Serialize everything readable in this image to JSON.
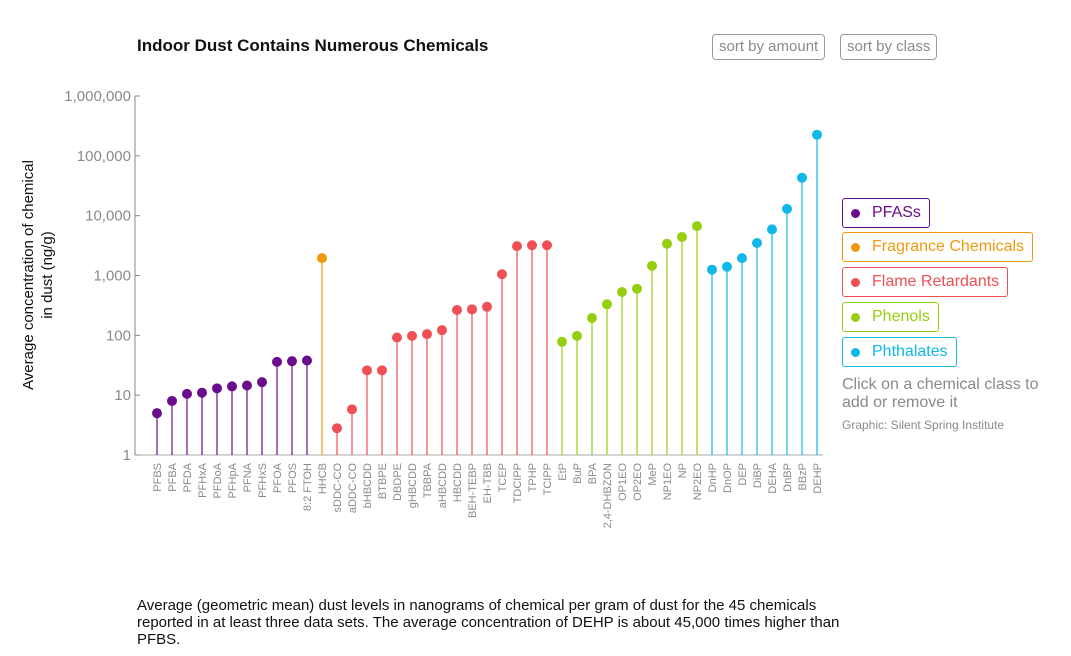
{
  "header": {
    "title": "Indoor Dust Contains Numerous Chemicals",
    "sort_amount_label": "sort by amount",
    "sort_class_label": "sort by class"
  },
  "legend": [
    {
      "name": "PFASs",
      "color": "#6a0d8d"
    },
    {
      "name": "Fragrance Chemicals",
      "color": "#f0990e"
    },
    {
      "name": "Flame Retardants",
      "color": "#ef4f55"
    },
    {
      "name": "Phenols",
      "color": "#95cf10"
    },
    {
      "name": "Phthalates",
      "color": "#0fb8e8"
    }
  ],
  "hint": "Click on a chemical class to add or remove it",
  "credit": "Graphic: Silent Spring Institute",
  "caption": "Average (geometric mean) dust levels in nanograms of chemical per gram of dust for the 45 chemicals reported in at least three data sets. The average concentration of DEHP is about 45,000 times higher than PFBS.",
  "chart_data": {
    "type": "lollipop",
    "ylabel_line1": "Average concentration of chemical",
    "ylabel_line2": "in dust (ng/g)",
    "yscale": "log",
    "ylim": [
      1,
      1000000
    ],
    "yticks": [
      {
        "value": 1,
        "label": "1"
      },
      {
        "value": 10,
        "label": "10"
      },
      {
        "value": 100,
        "label": "100"
      },
      {
        "value": 1000,
        "label": "1,000"
      },
      {
        "value": 10000,
        "label": "10,000"
      },
      {
        "value": 100000,
        "label": "100,000"
      },
      {
        "value": 1000000,
        "label": "1,000,000"
      }
    ],
    "points": [
      {
        "name": "PFBS",
        "class": "PFASs",
        "value": 5
      },
      {
        "name": "PFBA",
        "class": "PFASs",
        "value": 8
      },
      {
        "name": "PFDA",
        "class": "PFASs",
        "value": 10.5
      },
      {
        "name": "PFHxA",
        "class": "PFASs",
        "value": 11
      },
      {
        "name": "PFDoA",
        "class": "PFASs",
        "value": 13
      },
      {
        "name": "PFHpA",
        "class": "PFASs",
        "value": 14
      },
      {
        "name": "PFNA",
        "class": "PFASs",
        "value": 14.5
      },
      {
        "name": "PFHxS",
        "class": "PFASs",
        "value": 16.5
      },
      {
        "name": "PFOA",
        "class": "PFASs",
        "value": 36
      },
      {
        "name": "PFOS",
        "class": "PFASs",
        "value": 37
      },
      {
        "name": "8:2 FTOH",
        "class": "PFASs",
        "value": 38
      },
      {
        "name": "HHCB",
        "class": "Fragrance Chemicals",
        "value": 1950
      },
      {
        "name": "sDDC-CO",
        "class": "Flame Retardants",
        "value": 2.8
      },
      {
        "name": "aDDC-CO",
        "class": "Flame Retardants",
        "value": 5.8
      },
      {
        "name": "bHBCDD",
        "class": "Flame Retardants",
        "value": 26
      },
      {
        "name": "BTBPE",
        "class": "Flame Retardants",
        "value": 26
      },
      {
        "name": "DBDPE",
        "class": "Flame Retardants",
        "value": 92
      },
      {
        "name": "gHBCDD",
        "class": "Flame Retardants",
        "value": 98
      },
      {
        "name": "TBBPA",
        "class": "Flame Retardants",
        "value": 105
      },
      {
        "name": "aHBCDD",
        "class": "Flame Retardants",
        "value": 122
      },
      {
        "name": "HBCDD",
        "class": "Flame Retardants",
        "value": 265
      },
      {
        "name": "BEH-TEBP",
        "class": "Flame Retardants",
        "value": 272
      },
      {
        "name": "EH-TBB",
        "class": "Flame Retardants",
        "value": 300
      },
      {
        "name": "TCEP",
        "class": "Flame Retardants",
        "value": 1050
      },
      {
        "name": "TDCIPP",
        "class": "Flame Retardants",
        "value": 3100
      },
      {
        "name": "TPHP",
        "class": "Flame Retardants",
        "value": 3200
      },
      {
        "name": "TCIPP",
        "class": "Flame Retardants",
        "value": 3200
      },
      {
        "name": "EtP",
        "class": "Phenols",
        "value": 78
      },
      {
        "name": "BuP",
        "class": "Phenols",
        "value": 98
      },
      {
        "name": "BPA",
        "class": "Phenols",
        "value": 195
      },
      {
        "name": "2,4-DHBZON",
        "class": "Phenols",
        "value": 330
      },
      {
        "name": "OP1EO",
        "class": "Phenols",
        "value": 530
      },
      {
        "name": "OP2EO",
        "class": "Phenols",
        "value": 600
      },
      {
        "name": "MeP",
        "class": "Phenols",
        "value": 1450
      },
      {
        "name": "NP1EO",
        "class": "Phenols",
        "value": 3400
      },
      {
        "name": "NP",
        "class": "Phenols",
        "value": 4400
      },
      {
        "name": "NP2EO",
        "class": "Phenols",
        "value": 6700
      },
      {
        "name": "DnHP",
        "class": "Phthalates",
        "value": 1250
      },
      {
        "name": "DnOP",
        "class": "Phthalates",
        "value": 1400
      },
      {
        "name": "DEP",
        "class": "Phthalates",
        "value": 1950
      },
      {
        "name": "DiBP",
        "class": "Phthalates",
        "value": 3500
      },
      {
        "name": "DEHA",
        "class": "Phthalates",
        "value": 5900
      },
      {
        "name": "DnBP",
        "class": "Phthalates",
        "value": 13000
      },
      {
        "name": "BBzP",
        "class": "Phthalates",
        "value": 43000
      },
      {
        "name": "DEHP",
        "class": "Phthalates",
        "value": 225000
      }
    ]
  }
}
